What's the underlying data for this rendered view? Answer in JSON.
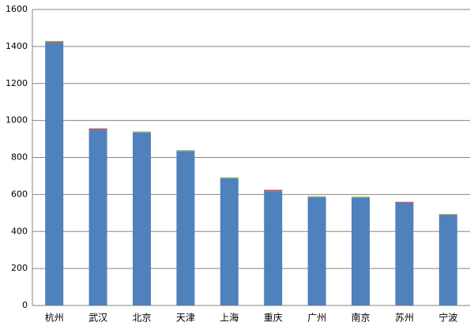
{
  "chart_data": {
    "type": "stacked_bar",
    "categories": [
      "杭州",
      "武汉",
      "北京",
      "天津",
      "上海",
      "重庆",
      "广州",
      "南京",
      "苏州",
      "宁波"
    ],
    "series": [
      {
        "color": "#4f81bd",
        "values": [
          1420,
          950,
          935,
          835,
          688,
          618,
          585,
          583,
          555,
          488
        ]
      },
      {
        "color": "#c0504d",
        "values": [
          5,
          7,
          0,
          0,
          0,
          7,
          0,
          0,
          5,
          3
        ]
      },
      {
        "color": "#9bbb59",
        "values": [
          5,
          0,
          6,
          5,
          5,
          0,
          6,
          6,
          0,
          4
        ]
      }
    ],
    "ylim": [
      0,
      1600
    ],
    "yticks": [
      0,
      200,
      400,
      600,
      800,
      1000,
      1200,
      1400,
      1600
    ],
    "grid": true
  }
}
